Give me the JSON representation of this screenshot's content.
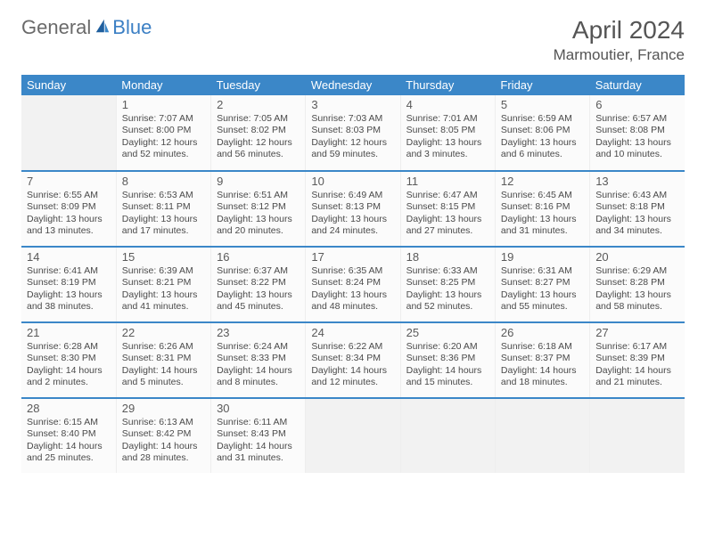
{
  "brand": {
    "part1": "General",
    "part2": "Blue"
  },
  "title": "April 2024",
  "location": "Marmoutier, France",
  "colors": {
    "header_bg": "#3b87c8",
    "header_text": "#ffffff",
    "page_bg": "#ffffff",
    "cell_filled_bg": "#fbfbfb",
    "cell_empty_bg": "#f2f2f2",
    "text": "#4a4a4a",
    "brand_blue": "#3b7fc4"
  },
  "day_headers": [
    "Sunday",
    "Monday",
    "Tuesday",
    "Wednesday",
    "Thursday",
    "Friday",
    "Saturday"
  ],
  "weeks": [
    [
      null,
      {
        "n": "1",
        "sr": "7:07 AM",
        "ss": "8:00 PM",
        "dl": "12 hours and 52 minutes."
      },
      {
        "n": "2",
        "sr": "7:05 AM",
        "ss": "8:02 PM",
        "dl": "12 hours and 56 minutes."
      },
      {
        "n": "3",
        "sr": "7:03 AM",
        "ss": "8:03 PM",
        "dl": "12 hours and 59 minutes."
      },
      {
        "n": "4",
        "sr": "7:01 AM",
        "ss": "8:05 PM",
        "dl": "13 hours and 3 minutes."
      },
      {
        "n": "5",
        "sr": "6:59 AM",
        "ss": "8:06 PM",
        "dl": "13 hours and 6 minutes."
      },
      {
        "n": "6",
        "sr": "6:57 AM",
        "ss": "8:08 PM",
        "dl": "13 hours and 10 minutes."
      }
    ],
    [
      {
        "n": "7",
        "sr": "6:55 AM",
        "ss": "8:09 PM",
        "dl": "13 hours and 13 minutes."
      },
      {
        "n": "8",
        "sr": "6:53 AM",
        "ss": "8:11 PM",
        "dl": "13 hours and 17 minutes."
      },
      {
        "n": "9",
        "sr": "6:51 AM",
        "ss": "8:12 PM",
        "dl": "13 hours and 20 minutes."
      },
      {
        "n": "10",
        "sr": "6:49 AM",
        "ss": "8:13 PM",
        "dl": "13 hours and 24 minutes."
      },
      {
        "n": "11",
        "sr": "6:47 AM",
        "ss": "8:15 PM",
        "dl": "13 hours and 27 minutes."
      },
      {
        "n": "12",
        "sr": "6:45 AM",
        "ss": "8:16 PM",
        "dl": "13 hours and 31 minutes."
      },
      {
        "n": "13",
        "sr": "6:43 AM",
        "ss": "8:18 PM",
        "dl": "13 hours and 34 minutes."
      }
    ],
    [
      {
        "n": "14",
        "sr": "6:41 AM",
        "ss": "8:19 PM",
        "dl": "13 hours and 38 minutes."
      },
      {
        "n": "15",
        "sr": "6:39 AM",
        "ss": "8:21 PM",
        "dl": "13 hours and 41 minutes."
      },
      {
        "n": "16",
        "sr": "6:37 AM",
        "ss": "8:22 PM",
        "dl": "13 hours and 45 minutes."
      },
      {
        "n": "17",
        "sr": "6:35 AM",
        "ss": "8:24 PM",
        "dl": "13 hours and 48 minutes."
      },
      {
        "n": "18",
        "sr": "6:33 AM",
        "ss": "8:25 PM",
        "dl": "13 hours and 52 minutes."
      },
      {
        "n": "19",
        "sr": "6:31 AM",
        "ss": "8:27 PM",
        "dl": "13 hours and 55 minutes."
      },
      {
        "n": "20",
        "sr": "6:29 AM",
        "ss": "8:28 PM",
        "dl": "13 hours and 58 minutes."
      }
    ],
    [
      {
        "n": "21",
        "sr": "6:28 AM",
        "ss": "8:30 PM",
        "dl": "14 hours and 2 minutes."
      },
      {
        "n": "22",
        "sr": "6:26 AM",
        "ss": "8:31 PM",
        "dl": "14 hours and 5 minutes."
      },
      {
        "n": "23",
        "sr": "6:24 AM",
        "ss": "8:33 PM",
        "dl": "14 hours and 8 minutes."
      },
      {
        "n": "24",
        "sr": "6:22 AM",
        "ss": "8:34 PM",
        "dl": "14 hours and 12 minutes."
      },
      {
        "n": "25",
        "sr": "6:20 AM",
        "ss": "8:36 PM",
        "dl": "14 hours and 15 minutes."
      },
      {
        "n": "26",
        "sr": "6:18 AM",
        "ss": "8:37 PM",
        "dl": "14 hours and 18 minutes."
      },
      {
        "n": "27",
        "sr": "6:17 AM",
        "ss": "8:39 PM",
        "dl": "14 hours and 21 minutes."
      }
    ],
    [
      {
        "n": "28",
        "sr": "6:15 AM",
        "ss": "8:40 PM",
        "dl": "14 hours and 25 minutes."
      },
      {
        "n": "29",
        "sr": "6:13 AM",
        "ss": "8:42 PM",
        "dl": "14 hours and 28 minutes."
      },
      {
        "n": "30",
        "sr": "6:11 AM",
        "ss": "8:43 PM",
        "dl": "14 hours and 31 minutes."
      },
      null,
      null,
      null,
      null
    ]
  ],
  "labels": {
    "sunrise": "Sunrise:",
    "sunset": "Sunset:",
    "daylight": "Daylight:"
  }
}
